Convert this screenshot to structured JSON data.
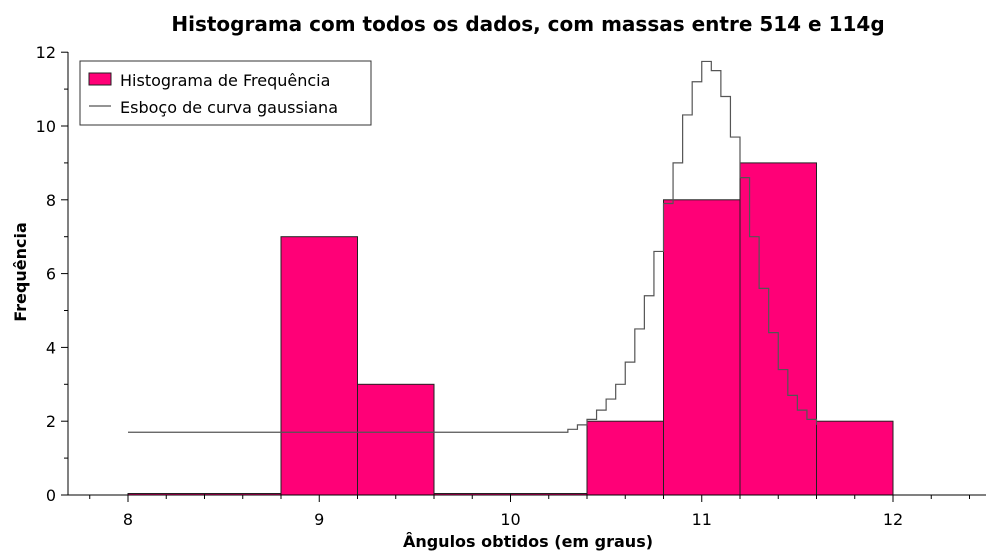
{
  "chart_data": {
    "type": "bar",
    "title": "Histograma com todos os dados, com massas entre 514 e 114g",
    "xlabel": "Ângulos obtidos (em graus)",
    "ylabel": "Frequência",
    "xlim": [
      7.7,
      12.5
    ],
    "ylim": [
      0,
      12
    ],
    "x_ticks": [
      "8",
      "9",
      "10",
      "11",
      "12"
    ],
    "y_ticks": [
      "0",
      "2",
      "4",
      "6",
      "8",
      "10",
      "12"
    ],
    "grid": false,
    "legend": {
      "placement": "top-left",
      "entries": [
        "Histograma de Frequência",
        "Esboço de curva gaussiana"
      ]
    },
    "bar_color": "#ff0077",
    "curve_color": "#555555",
    "series": [
      {
        "name": "Histograma de Frequência",
        "bins": [
          {
            "from": 8.0,
            "to": 8.4,
            "value": 0
          },
          {
            "from": 8.4,
            "to": 8.8,
            "value": 0
          },
          {
            "from": 8.8,
            "to": 9.2,
            "value": 7
          },
          {
            "from": 9.2,
            "to": 9.6,
            "value": 3
          },
          {
            "from": 9.6,
            "to": 10.0,
            "value": 0
          },
          {
            "from": 10.0,
            "to": 10.4,
            "value": 0
          },
          {
            "from": 10.4,
            "to": 10.8,
            "value": 2
          },
          {
            "from": 10.8,
            "to": 11.2,
            "value": 8
          },
          {
            "from": 11.2,
            "to": 11.6,
            "value": 9
          },
          {
            "from": 11.6,
            "to": 12.0,
            "value": 2
          }
        ]
      },
      {
        "name": "Esboço de curva gaussiana",
        "x": [
          8.0,
          9.0,
          10.0,
          10.2,
          10.3,
          10.35,
          10.4,
          10.45,
          10.5,
          10.55,
          10.6,
          10.65,
          10.7,
          10.75,
          10.8,
          10.85,
          10.9,
          10.95,
          11.0,
          11.05,
          11.1,
          11.15,
          11.2,
          11.25,
          11.3,
          11.35,
          11.4,
          11.45,
          11.5,
          11.55,
          11.6
        ],
        "y": [
          1.7,
          1.7,
          1.7,
          1.7,
          1.78,
          1.9,
          2.05,
          2.3,
          2.6,
          3.0,
          3.6,
          4.5,
          5.4,
          6.6,
          7.9,
          9.0,
          10.3,
          11.2,
          11.75,
          11.5,
          10.8,
          9.7,
          8.6,
          7.0,
          5.6,
          4.4,
          3.4,
          2.7,
          2.3,
          2.05,
          1.9
        ]
      }
    ]
  }
}
